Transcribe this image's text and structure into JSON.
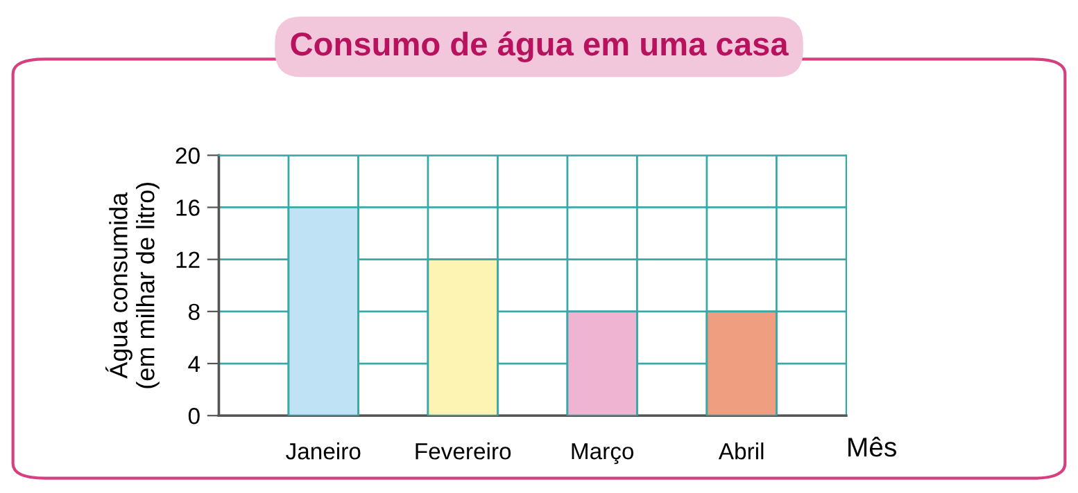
{
  "chart_data": {
    "type": "bar",
    "title": "Consumo de água em uma casa",
    "categories": [
      "Janeiro",
      "Fevereiro",
      "Março",
      "Abril"
    ],
    "values": [
      16,
      12,
      8,
      8
    ],
    "colors": [
      "#bfe2f4",
      "#fdf4b4",
      "#efb4d2",
      "#ef9e80"
    ],
    "xlabel": "Mês",
    "ylabel": "Água consumida\n(em milhar de litro)",
    "ylim": [
      0,
      20
    ],
    "yticks": [
      0,
      4,
      8,
      12,
      16,
      20
    ],
    "grid": true
  }
}
